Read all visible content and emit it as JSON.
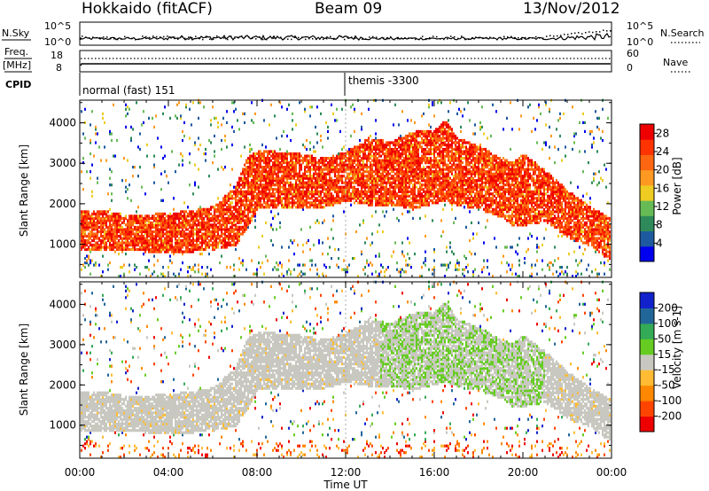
{
  "header": {
    "station": "Hokkaido (fitACF)",
    "beam": "Beam 09",
    "date": "13/Nov/2012"
  },
  "noise_panel": {
    "left_label": "N.Sky",
    "left_ticks": [
      "10^5",
      "10^0"
    ],
    "right_label": "N.Search",
    "right_ticks": [
      "10^5",
      "10^0"
    ]
  },
  "freq_panel": {
    "left_label_1": "Freq.",
    "left_label_2": "[MHz]",
    "left_ticks": [
      "18",
      "8"
    ],
    "right_label": "Nave",
    "right_ticks": [
      "60",
      "0"
    ]
  },
  "cpid": {
    "label": "CPID",
    "mode_1": "normal (fast) 151",
    "mode_2": "themis -3300"
  },
  "colors": {
    "power_scale": [
      "#0000ee",
      "#1e5aa0",
      "#2e8a5a",
      "#66bb55",
      "#eecc22",
      "#ff9922",
      "#ff6611",
      "#ff3300",
      "#ee0000"
    ],
    "velocity_scale": [
      "#ee0000",
      "#ff4400",
      "#ff8800",
      "#ffbb33",
      "#c8c8c0",
      "#66cc22",
      "#33aa55",
      "#226699",
      "#1122cc"
    ]
  },
  "chart_data": [
    {
      "type": "heatmap",
      "title": "Power",
      "xlabel": "Time UT",
      "ylabel": "Slant Range [km]",
      "x_ticks": [
        "00:00",
        "04:00",
        "08:00",
        "12:00",
        "16:00",
        "20:00",
        "00:00"
      ],
      "xlim_hours": [
        0,
        24
      ],
      "y_ticks": [
        1000,
        2000,
        3000,
        4000
      ],
      "ylim": [
        180,
        4560
      ],
      "colorbar_label": "Power [dB]",
      "colorbar_ticks": [
        "4",
        "8",
        "12",
        "16",
        "20",
        "24",
        "28"
      ],
      "colorbar_range": [
        0,
        30
      ],
      "scatter_envelope": {
        "hours": [
          0,
          1,
          2,
          3,
          4,
          5,
          6,
          7,
          7.5,
          8,
          9,
          10,
          11,
          12,
          13,
          14,
          15,
          16,
          16.5,
          17,
          18,
          19,
          19.5,
          20,
          21,
          22,
          23,
          24
        ],
        "inner_km": [
          1000,
          1000,
          1000,
          950,
          950,
          950,
          1000,
          1100,
          1500,
          2000,
          2050,
          2000,
          2050,
          2200,
          2100,
          2100,
          2000,
          2150,
          2200,
          2100,
          2000,
          1800,
          1600,
          1600,
          1700,
          1300,
          1100,
          700
        ],
        "outer_km": [
          1700,
          1700,
          1600,
          1600,
          1650,
          1700,
          1800,
          2300,
          3000,
          3200,
          3150,
          3100,
          3000,
          3150,
          3500,
          3400,
          3650,
          3700,
          3950,
          3500,
          3300,
          3000,
          2900,
          3100,
          2700,
          2200,
          1800,
          1500
        ]
      }
    },
    {
      "type": "heatmap",
      "title": "Velocity",
      "xlabel": "Time UT",
      "ylabel": "Slant Range [km]",
      "x_ticks": [
        "00:00",
        "04:00",
        "08:00",
        "12:00",
        "16:00",
        "20:00",
        "00:00"
      ],
      "xlim_hours": [
        0,
        24
      ],
      "y_ticks": [
        1000,
        2000,
        3000,
        4000
      ],
      "ylim": [
        180,
        4560
      ],
      "colorbar_label": "Velocity [m s-1]",
      "colorbar_ticks": [
        "200",
        "100",
        "50",
        "15",
        "-15",
        "-50",
        "-100",
        "-200"
      ],
      "colorbar_range": [
        -250,
        250
      ]
    }
  ]
}
